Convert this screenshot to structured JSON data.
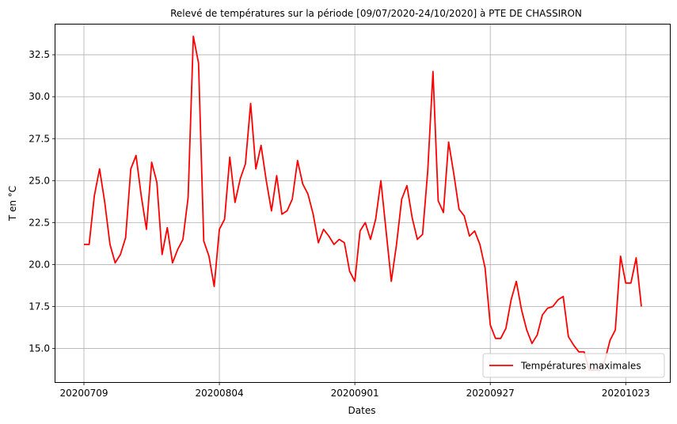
{
  "chart_data": {
    "type": "line",
    "title": "Relevé de températures sur la période [09/07/2020-24/10/2020] à PTE DE CHASSIRON",
    "xlabel": "Dates",
    "ylabel": "T en °C",
    "x_tick_labels": [
      "20200709",
      "20200804",
      "20200901",
      "20200927",
      "20201023"
    ],
    "y_tick_labels": [
      "15.0",
      "17.5",
      "20.0",
      "22.5",
      "25.0",
      "27.5",
      "30.0",
      "32.5"
    ],
    "ylim": [
      13.0,
      34.3
    ],
    "grid": true,
    "legend_position": "lower-right",
    "series": [
      {
        "name": "Températures maximales",
        "color": "#ff0000",
        "values": [
          21.2,
          21.2,
          24.1,
          25.7,
          23.7,
          21.2,
          20.1,
          20.6,
          21.6,
          25.7,
          26.5,
          24.1,
          22.1,
          26.1,
          24.9,
          20.6,
          22.2,
          20.1,
          20.9,
          21.5,
          24.0,
          33.6,
          32.0,
          21.4,
          20.5,
          18.7,
          22.1,
          22.7,
          26.4,
          23.7,
          25.1,
          26.0,
          29.6,
          25.7,
          27.1,
          25.0,
          23.2,
          25.3,
          23.0,
          23.2,
          23.9,
          26.2,
          24.8,
          24.2,
          23.0,
          21.3,
          22.1,
          21.7,
          21.2,
          21.5,
          21.3,
          19.6,
          19.0,
          22.0,
          22.5,
          21.5,
          22.7,
          25.0,
          22.0,
          19.0,
          21.2,
          23.9,
          24.7,
          22.8,
          21.5,
          21.8,
          25.6,
          31.5,
          23.8,
          23.1,
          27.3,
          25.4,
          23.3,
          22.9,
          21.7,
          22.0,
          21.2,
          19.8,
          16.4,
          15.6,
          15.6,
          16.2,
          17.9,
          19.0,
          17.3,
          16.1,
          15.3,
          15.8,
          17.0,
          17.4,
          17.5,
          17.9,
          18.1,
          15.7,
          15.2,
          14.8,
          14.8,
          13.7,
          13.7,
          13.7,
          14.3,
          15.5,
          16.1,
          20.5,
          18.9,
          18.9,
          20.4,
          17.5
        ]
      }
    ]
  }
}
